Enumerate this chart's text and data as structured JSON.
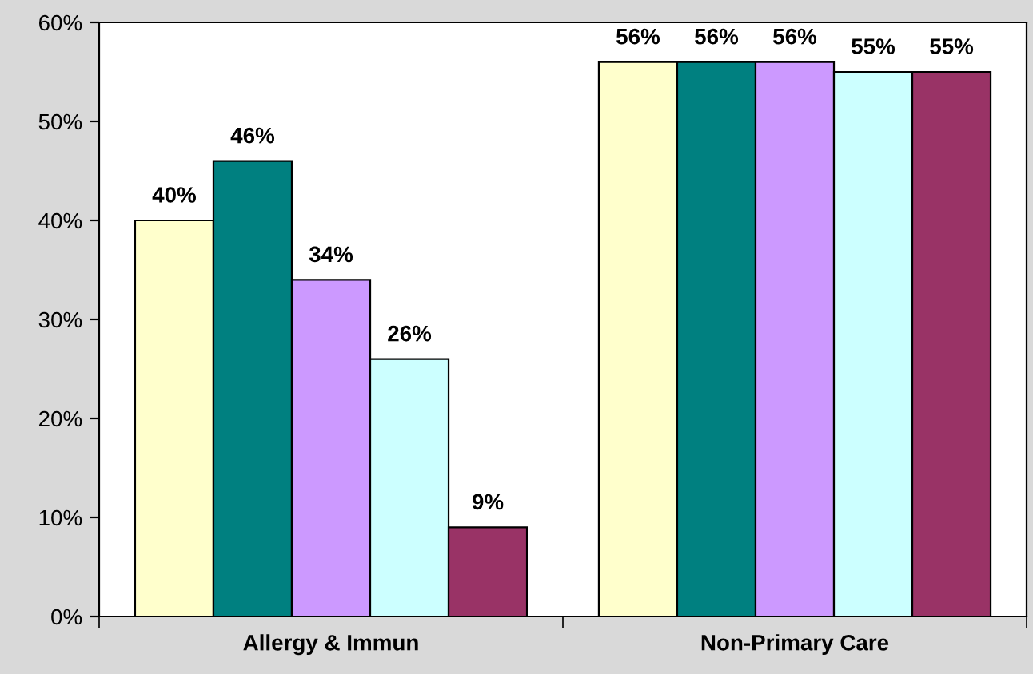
{
  "chart_data": {
    "type": "bar",
    "categories": [
      "Allergy & Immun",
      "Non-Primary Care"
    ],
    "series": [
      {
        "color": "#ffffcc",
        "values": [
          40,
          56
        ],
        "value_labels": [
          "40%",
          "56%"
        ]
      },
      {
        "color": "#008080",
        "values": [
          46,
          56
        ],
        "value_labels": [
          "46%",
          "56%"
        ]
      },
      {
        "color": "#cc99ff",
        "values": [
          34,
          56
        ],
        "value_labels": [
          "34%",
          "56%"
        ]
      },
      {
        "color": "#ccffff",
        "values": [
          26,
          55
        ],
        "value_labels": [
          "26%",
          "55%"
        ]
      },
      {
        "color": "#993366",
        "values": [
          9,
          55
        ],
        "value_labels": [
          "9%",
          "55%"
        ]
      }
    ],
    "ylim": [
      0,
      60
    ],
    "yticks": [
      {
        "value": 0,
        "label": "0%"
      },
      {
        "value": 10,
        "label": "10%"
      },
      {
        "value": 20,
        "label": "20%"
      },
      {
        "value": 30,
        "label": "30%"
      },
      {
        "value": 40,
        "label": "40%"
      },
      {
        "value": 50,
        "label": "50%"
      },
      {
        "value": 60,
        "label": "60%"
      }
    ],
    "grid": false
  }
}
